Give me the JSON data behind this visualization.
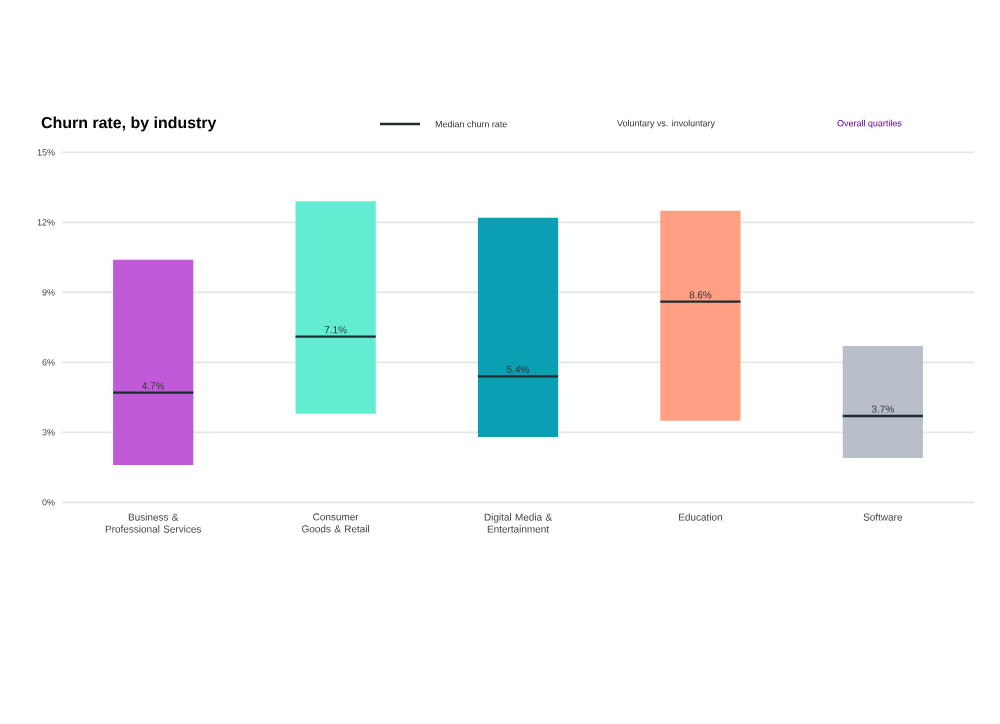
{
  "chart_data": {
    "type": "box",
    "title": "Churn rate, by industry",
    "categories": [
      "Business & Professional Services",
      "Consumer Goods & Retail",
      "Digital Media & Entertainment",
      "Education",
      "Software"
    ],
    "series": [
      {
        "name": "Median churn rate",
        "color": "#1f2d33",
        "colors": [
          "#c05ad8",
          "#62ecd2",
          "#0a9fb2",
          "#ff9f84",
          "#b9bfc9"
        ],
        "boxes": [
          {
            "low": 1.6,
            "q1": 1.6,
            "median": 4.7,
            "q3": 10.4,
            "high": 10.4
          },
          {
            "low": 3.8,
            "q1": 3.8,
            "median": 7.1,
            "q3": 12.9,
            "high": 12.9
          },
          {
            "low": 2.8,
            "q1": 2.8,
            "median": 5.4,
            "q3": 12.2,
            "high": 12.2
          },
          {
            "low": 3.5,
            "q1": 3.5,
            "median": 8.6,
            "q3": 12.5,
            "high": 12.5
          },
          {
            "low": 1.9,
            "q1": 1.9,
            "median": 3.7,
            "q3": 6.7,
            "high": 6.7
          }
        ]
      }
    ],
    "value_labels": [
      "4.7%",
      "7.1%",
      "5.4%",
      "8.6%",
      "3.7%"
    ],
    "ylim": [
      0,
      15
    ],
    "yticks": [
      {
        "value": 0,
        "label": "0%"
      },
      {
        "value": 3,
        "label": "3%"
      },
      {
        "value": 6,
        "label": "6%"
      },
      {
        "value": 9,
        "label": "9%"
      },
      {
        "value": 12,
        "label": "12%"
      },
      {
        "value": 15,
        "label": "15%"
      }
    ],
    "grid": "y",
    "legend": "top",
    "annotations": [
      "Voluntary vs. involuntary",
      "Overall quartiles"
    ]
  }
}
